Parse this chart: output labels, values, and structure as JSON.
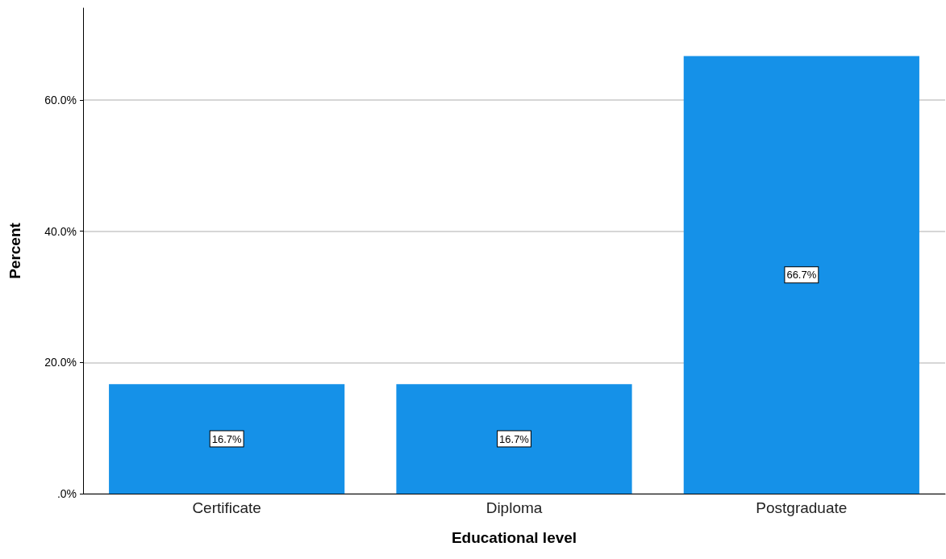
{
  "chart_data": {
    "type": "bar",
    "xlabel": "Educational level",
    "ylabel": "Percent",
    "categories": [
      "Certificate",
      "Diploma",
      "Postgraduate"
    ],
    "values": [
      16.7,
      16.7,
      66.7
    ],
    "value_labels": [
      "16.7%",
      "16.7%",
      "66.7%"
    ],
    "color": "#1591e8",
    "ylim": [
      0,
      74
    ],
    "yticks": [
      {
        "value": 0,
        "label": ".0%"
      },
      {
        "value": 20,
        "label": "20.0%"
      },
      {
        "value": 40,
        "label": "40.0%"
      },
      {
        "value": 60,
        "label": "60.0%"
      }
    ],
    "grid": "y"
  }
}
